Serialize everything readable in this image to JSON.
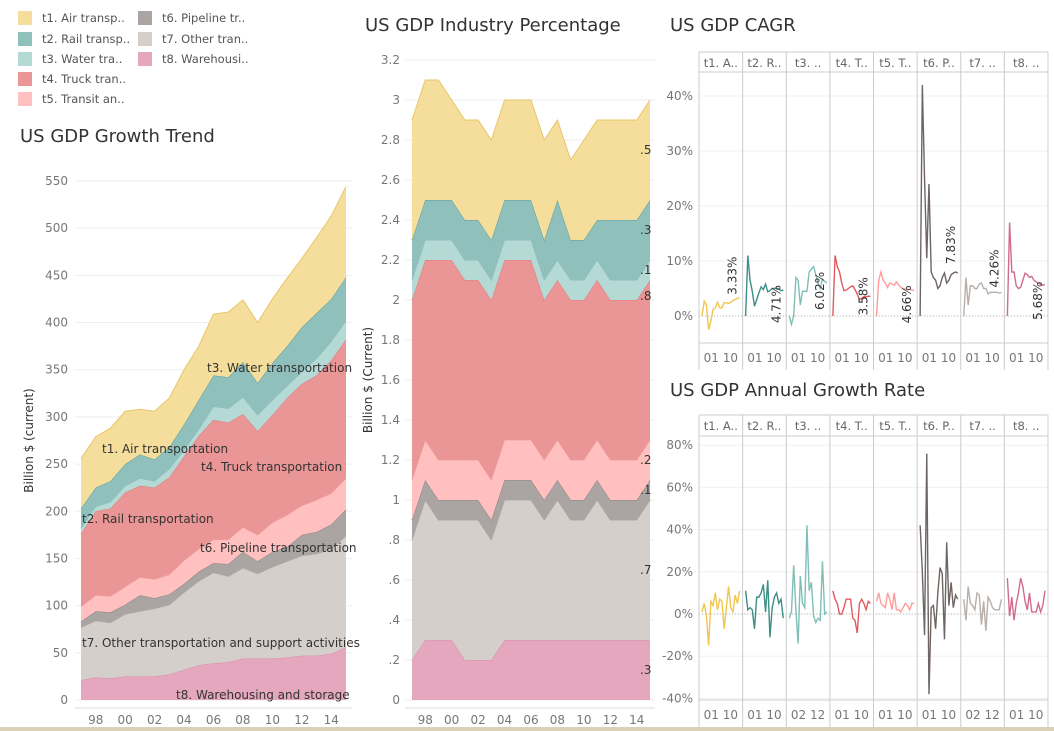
{
  "legend": {
    "items": [
      {
        "label": "t1.  Air transp..",
        "color": "#f5de9c"
      },
      {
        "label": "t2. Rail transp..",
        "color": "#8fc0bc"
      },
      {
        "label": "t3.  Water tra..",
        "color": "#b5d9d5"
      },
      {
        "label": "t4.  Truck tran..",
        "color": "#eb9696"
      },
      {
        "label": "t5.  Transit an..",
        "color": "#ffc0bf"
      },
      {
        "label": "t6. Pipeline tr..",
        "color": "#aaa4a2"
      },
      {
        "label": "t7. Other tran..",
        "color": "#d5cfcc"
      },
      {
        "label": "t8.  Warehousi..",
        "color": "#e4a7bd"
      }
    ]
  },
  "chart_data": [
    {
      "type": "area",
      "stacked": true,
      "title": "US GDP Growth Trend",
      "ylabel": "Billion $ (current)",
      "xlabel": "",
      "x": [
        1997,
        1998,
        1999,
        2000,
        2001,
        2002,
        2003,
        2004,
        2005,
        2006,
        2007,
        2008,
        2009,
        2010,
        2011,
        2012,
        2013,
        2014,
        2015
      ],
      "x_tick_labels": [
        "98",
        "00",
        "02",
        "04",
        "06",
        "08",
        "10",
        "12",
        "14"
      ],
      "y_ticks": [
        "0",
        "50",
        "100",
        "150",
        "200",
        "250",
        "300",
        "350",
        "400",
        "450",
        "500",
        "550"
      ],
      "ylim": [
        0,
        550
      ],
      "grid": true,
      "series": [
        {
          "name": "t1.  Air transportation",
          "values": [
            53,
            54,
            56,
            56,
            48,
            51,
            52,
            58,
            57,
            65,
            69,
            66,
            64,
            68,
            72,
            73,
            80,
            88,
            96
          ]
        },
        {
          "name": "t2. Rail transportation",
          "values": [
            21,
            20,
            22,
            23,
            25,
            23,
            23,
            27,
            31,
            33,
            33,
            37,
            34,
            39,
            42,
            47,
            48,
            45,
            46
          ]
        },
        {
          "name": "t3.  Water transportation",
          "values": [
            6,
            5,
            7,
            7,
            8,
            7,
            9,
            7,
            7,
            14,
            15,
            18,
            17,
            16,
            13,
            13,
            18,
            20,
            20
          ]
        },
        {
          "name": "t4.  Truck transportation",
          "values": [
            77,
            89,
            93,
            100,
            97,
            97,
            103,
            110,
            120,
            127,
            124,
            120,
            110,
            114,
            124,
            129,
            132,
            141,
            147
          ]
        },
        {
          "name": "t5.  Transit an..",
          "values": [
            16,
            17,
            17,
            19,
            19,
            20,
            21,
            25,
            24,
            25,
            26,
            26,
            28,
            31,
            34,
            31,
            34,
            33,
            33
          ]
        },
        {
          "name": "t6. Pipeline transportation",
          "values": [
            6,
            10,
            11,
            10,
            17,
            11,
            11,
            9,
            10,
            10,
            13,
            17,
            13,
            16,
            15,
            22,
            23,
            26,
            28
          ]
        },
        {
          "name": "t7. Other transportation and support activities",
          "values": [
            56,
            60,
            59,
            66,
            69,
            72,
            74,
            82,
            89,
            96,
            91,
            96,
            90,
            97,
            102,
            106,
            108,
            111,
            118
          ]
        },
        {
          "name": "t8.  Warehousing and storage",
          "values": [
            21,
            24,
            23,
            25,
            25,
            25,
            27,
            32,
            37,
            39,
            40,
            44,
            44,
            44,
            45,
            47,
            47,
            49,
            56
          ]
        }
      ]
    },
    {
      "type": "area",
      "stacked": true,
      "title": "US GDP Industry Percentage",
      "ylabel": "Billion $ (Current)",
      "xlabel": "",
      "x": [
        1997,
        1998,
        1999,
        2000,
        2001,
        2002,
        2003,
        2004,
        2005,
        2006,
        2007,
        2008,
        2009,
        2010,
        2011,
        2012,
        2013,
        2014,
        2015
      ],
      "x_tick_labels": [
        "98",
        "00",
        "02",
        "04",
        "06",
        "08",
        "10",
        "12",
        "14"
      ],
      "y_ticks": [
        "0",
        ".2",
        ".4",
        ".6",
        ".8",
        "1",
        "1.2",
        "1.4",
        "1.6",
        "1.8",
        "2",
        "2.2",
        "2.4",
        "2.6",
        "2.8",
        "3",
        "3.2"
      ],
      "ylim": [
        0,
        3.2
      ],
      "grid": true,
      "end_labels": [
        ".5",
        ".3",
        ".1",
        ".8",
        ".2",
        ".1",
        ".7",
        ".3"
      ],
      "series": [
        {
          "name": "t1",
          "values": [
            0.6,
            0.6,
            0.6,
            0.5,
            0.5,
            0.5,
            0.5,
            0.5,
            0.5,
            0.5,
            0.5,
            0.4,
            0.4,
            0.5,
            0.5,
            0.5,
            0.5,
            0.5,
            0.5
          ]
        },
        {
          "name": "t2",
          "values": [
            0.2,
            0.2,
            0.2,
            0.2,
            0.2,
            0.2,
            0.2,
            0.2,
            0.2,
            0.2,
            0.2,
            0.3,
            0.2,
            0.2,
            0.2,
            0.3,
            0.3,
            0.3,
            0.3
          ]
        },
        {
          "name": "t3",
          "values": [
            0.1,
            0.1,
            0.1,
            0.1,
            0.1,
            0.1,
            0.1,
            0.1,
            0.1,
            0.1,
            0.1,
            0.1,
            0.1,
            0.1,
            0.1,
            0.1,
            0.1,
            0.1,
            0.1
          ]
        },
        {
          "name": "t4",
          "values": [
            0.9,
            0.9,
            1.0,
            1.0,
            0.9,
            0.9,
            0.9,
            0.9,
            0.9,
            0.9,
            0.8,
            0.8,
            0.8,
            0.8,
            0.8,
            0.8,
            0.8,
            0.8,
            0.8
          ]
        },
        {
          "name": "t5",
          "values": [
            0.2,
            0.2,
            0.2,
            0.2,
            0.2,
            0.2,
            0.2,
            0.2,
            0.2,
            0.2,
            0.2,
            0.2,
            0.2,
            0.2,
            0.2,
            0.2,
            0.2,
            0.2,
            0.2
          ]
        },
        {
          "name": "t6",
          "values": [
            0.1,
            0.1,
            0.1,
            0.1,
            0.1,
            0.1,
            0.1,
            0.1,
            0.1,
            0.1,
            0.1,
            0.1,
            0.1,
            0.1,
            0.1,
            0.1,
            0.1,
            0.1,
            0.1
          ]
        },
        {
          "name": "t7",
          "values": [
            0.6,
            0.7,
            0.6,
            0.6,
            0.7,
            0.7,
            0.6,
            0.7,
            0.7,
            0.7,
            0.6,
            0.7,
            0.6,
            0.6,
            0.7,
            0.6,
            0.6,
            0.6,
            0.7
          ]
        },
        {
          "name": "t8",
          "values": [
            0.2,
            0.3,
            0.3,
            0.3,
            0.2,
            0.2,
            0.2,
            0.3,
            0.3,
            0.3,
            0.3,
            0.3,
            0.3,
            0.3,
            0.3,
            0.3,
            0.3,
            0.3,
            0.3
          ]
        }
      ]
    },
    {
      "type": "line",
      "faceted": true,
      "title": "US GDP CAGR",
      "x": [
        1998,
        1999,
        2000,
        2001,
        2002,
        2003,
        2004,
        2005,
        2006,
        2007,
        2008,
        2009,
        2010,
        2011,
        2012,
        2013,
        2014,
        2015
      ],
      "y_ticks": [
        "0%",
        "10%",
        "20%",
        "30%",
        "40%"
      ],
      "ylim": [
        -5,
        45
      ],
      "grid": true,
      "facets": [
        {
          "header": "t1.  A..",
          "x_ticks": [
            "01",
            "10"
          ],
          "color": "#f0c64f",
          "end_label": "3.33%",
          "values": [
            0,
            2.7,
            2,
            -2.5,
            -1,
            1.2,
            1.5,
            2.5,
            1.5,
            1.5,
            2.4,
            2.4,
            2.3,
            2.5,
            2.8,
            3,
            3.2,
            3.33
          ]
        },
        {
          "header": "t2. R..",
          "x_ticks": [
            "01",
            "10"
          ],
          "color": "#3c8f84",
          "end_label": "4.71%",
          "values": [
            0,
            11,
            6.5,
            4.5,
            1.8,
            3,
            4.2,
            5.3,
            4.8,
            5.8,
            4.4,
            4.6,
            5,
            5,
            5.1,
            4.9,
            4.6,
            4.71
          ]
        },
        {
          "header": "t3.  ..",
          "x_ticks": [
            "01",
            "10"
          ],
          "color": "#7fbfb5",
          "end_label": "6.02%",
          "values": [
            0,
            -1.5,
            0,
            7,
            6.5,
            2,
            4.5,
            4.5,
            4.5,
            8,
            8.5,
            9,
            7.5,
            6,
            5,
            6.7,
            6.3,
            6.02
          ]
        },
        {
          "header": "t4.  T..",
          "x_ticks": [
            "01",
            "10"
          ],
          "color": "#e05a5f",
          "end_label": "3.58%",
          "values": [
            0,
            11,
            9,
            8,
            6,
            4.6,
            4.7,
            5,
            5.3,
            5.5,
            4.8,
            4,
            3,
            3.2,
            3.5,
            3.5,
            3.6,
            3.58
          ]
        },
        {
          "header": "t5.  T..",
          "x_ticks": [
            "01",
            "10"
          ],
          "color": "#ff9c9a",
          "end_label": "4.66%",
          "values": [
            0,
            6.5,
            8,
            6.5,
            6,
            5.2,
            6,
            5.8,
            5.6,
            6.2,
            5.7,
            5.2,
            5,
            4.9,
            4.8,
            4.8,
            4.7,
            4.66
          ]
        },
        {
          "header": "t6. P..",
          "x_ticks": [
            "01",
            "10"
          ],
          "color": "#6e6563",
          "end_label": "7.83%",
          "values": [
            0,
            42,
            25,
            10.5,
            24,
            8,
            7,
            6.5,
            5,
            5.5,
            7,
            7.8,
            6,
            6.5,
            7.5,
            7.8,
            8,
            7.83
          ]
        },
        {
          "header": "t7. ..",
          "x_ticks": [
            "01",
            "10"
          ],
          "color": "#b9afaa",
          "end_label": "4.26%",
          "values": [
            0,
            7,
            2,
            5.5,
            5.5,
            5,
            5,
            5.8,
            6,
            5,
            5,
            4,
            4.3,
            4.3,
            4.3,
            4.3,
            4.2,
            4.26
          ]
        },
        {
          "header": "t8.  ..",
          "x_ticks": [
            "01",
            "10"
          ],
          "color": "#d16b8e",
          "end_label": "5.68%",
          "values": [
            0,
            17,
            8,
            8,
            5.5,
            5,
            5.2,
            6.5,
            7.8,
            7.5,
            7,
            7.2,
            6.5,
            6.2,
            6,
            5.8,
            5.6,
            5.68
          ]
        }
      ]
    },
    {
      "type": "line",
      "faceted": true,
      "title": "US GDP Annual Growth Rate",
      "x": [
        1998,
        1999,
        2000,
        2001,
        2002,
        2003,
        2004,
        2005,
        2006,
        2007,
        2008,
        2009,
        2010,
        2011,
        2012,
        2013,
        2014,
        2015
      ],
      "y_ticks": [
        "-40%",
        "-20%",
        "0%",
        "20%",
        "40%",
        "60%",
        "80%"
      ],
      "ylim": [
        -45,
        85
      ],
      "grid": true,
      "facets": [
        {
          "header": "t1.  A..",
          "x_ticks": [
            "01",
            "10"
          ],
          "color": "#f0c64f",
          "values": [
            1,
            5,
            -1,
            -15,
            6,
            4,
            10,
            2,
            7,
            6,
            -7,
            3,
            13,
            3,
            1,
            9,
            5,
            11
          ]
        },
        {
          "header": "t2. R..",
          "x_ticks": [
            "01",
            "10"
          ],
          "color": "#3c8f84",
          "values": [
            11,
            2,
            3,
            2,
            -7,
            8,
            8,
            10,
            14,
            1,
            16,
            -11,
            3,
            8,
            10,
            5,
            7,
            -2
          ]
        },
        {
          "header": "t3.  ..",
          "x_ticks": [
            "02",
            "12"
          ],
          "color": "#7fbfb5",
          "values": [
            -2,
            1,
            23,
            2,
            -14,
            18,
            5,
            3,
            42,
            11,
            15,
            -1,
            -4,
            -2,
            -3,
            25,
            0,
            1
          ]
        },
        {
          "header": "t4.  T..",
          "x_ticks": [
            "01",
            "10"
          ],
          "color": "#e05a5f",
          "values": [
            11,
            7,
            5,
            0,
            0,
            3,
            7,
            7,
            7,
            -2,
            -3,
            -9,
            5,
            7,
            5,
            2,
            6,
            5
          ]
        },
        {
          "header": "t5.  T..",
          "x_ticks": [
            "01",
            "10"
          ],
          "color": "#ff9c9a",
          "values": [
            6,
            10,
            5,
            4,
            3,
            10,
            7,
            2,
            10,
            2,
            2,
            1,
            3,
            5,
            4,
            2,
            5,
            5
          ]
        },
        {
          "header": "t6. P..",
          "x_ticks": [
            "01",
            "10"
          ],
          "color": "#6e6563",
          "values": [
            42,
            20,
            -10,
            76,
            -38,
            3,
            4,
            -7,
            10,
            22,
            19,
            -12,
            34,
            4,
            15,
            3,
            9,
            7
          ]
        },
        {
          "header": "t7. ..",
          "x_ticks": [
            "02",
            "12"
          ],
          "color": "#b9afaa",
          "values": [
            7,
            -3,
            13,
            5,
            4,
            2,
            10,
            9,
            -5,
            6,
            -8,
            8,
            6,
            3,
            2,
            2,
            2,
            7
          ]
        },
        {
          "header": "t8.  ..",
          "x_ticks": [
            "01",
            "10"
          ],
          "color": "#d16b8e",
          "values": [
            17,
            -1,
            8,
            -3,
            5,
            10,
            17,
            13,
            6,
            2,
            10,
            1,
            1,
            1,
            5,
            1,
            4,
            11
          ]
        }
      ]
    }
  ]
}
